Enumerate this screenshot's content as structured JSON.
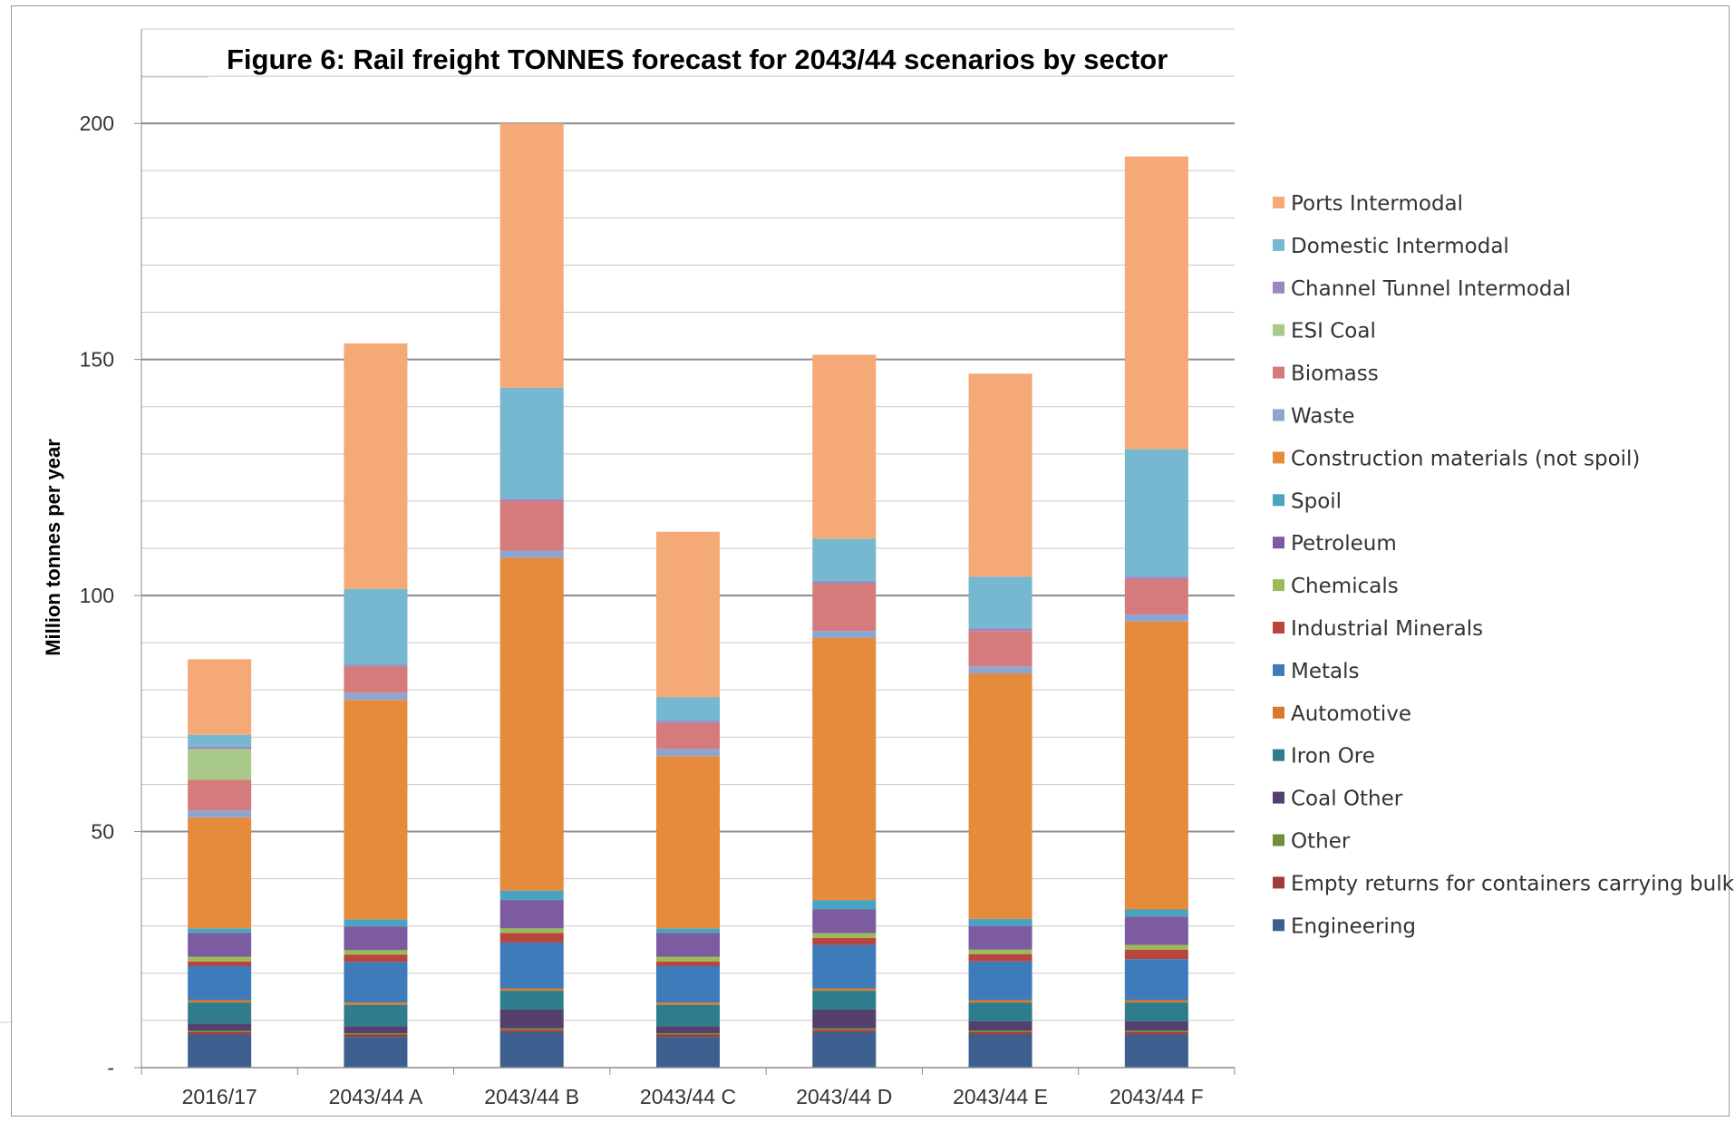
{
  "chart_data": {
    "type": "bar",
    "stacked": true,
    "title": "Figure 6:  Rail freight TONNES forecast for 2043/44 scenarios by sector",
    "ylabel": "Million tonnes per year",
    "xlabel": "",
    "ylim": [
      0,
      220
    ],
    "yticks": [
      {
        "value": 0,
        "label": "-"
      },
      {
        "value": 50,
        "label": "50"
      },
      {
        "value": 100,
        "label": "100"
      },
      {
        "value": 150,
        "label": "150"
      },
      {
        "value": 200,
        "label": "200"
      }
    ],
    "grid": true,
    "legend_position": "right",
    "categories": [
      "2016/17",
      "2043/44 A",
      "2043/44 B",
      "2043/44 C",
      "2043/44 D",
      "2043/44 E",
      "2043/44 F"
    ],
    "series": [
      {
        "name": "Engineering",
        "color": "#3d5f8f",
        "values": [
          7,
          6.5,
          7.5,
          6.5,
          7.5,
          7,
          7
        ]
      },
      {
        "name": "Empty returns for containers carrying bulks",
        "color": "#a23b3b",
        "values": [
          0.5,
          0.5,
          0.5,
          0.5,
          0.5,
          0.5,
          0.5
        ]
      },
      {
        "name": "Other",
        "color": "#6f8f3a",
        "values": [
          0.3,
          0.3,
          0.3,
          0.3,
          0.3,
          0.3,
          0.3
        ]
      },
      {
        "name": "Coal Other",
        "color": "#55406d",
        "values": [
          1.5,
          1.5,
          4,
          1.5,
          4,
          2,
          2
        ]
      },
      {
        "name": "Iron Ore",
        "color": "#2f7c8c",
        "values": [
          4.5,
          4.5,
          4,
          4.5,
          4,
          4,
          4
        ]
      },
      {
        "name": "Automotive",
        "color": "#d9792e",
        "values": [
          0.5,
          0.5,
          0.5,
          0.5,
          0.5,
          0.5,
          0.5
        ]
      },
      {
        "name": "Metals",
        "color": "#3d7bbb",
        "values": [
          7.2,
          8.6,
          9.7,
          7.7,
          9.2,
          8.2,
          8.7
        ]
      },
      {
        "name": "Industrial Minerals",
        "color": "#b8453e",
        "values": [
          1,
          1.5,
          2,
          1,
          1.5,
          1.5,
          2
        ]
      },
      {
        "name": "Chemicals",
        "color": "#9bbb59",
        "values": [
          1,
          1,
          1,
          1,
          1,
          1,
          1
        ]
      },
      {
        "name": "Petroleum",
        "color": "#7c5ba0",
        "values": [
          5,
          5,
          6,
          5,
          5,
          5,
          6
        ]
      },
      {
        "name": "Spoil",
        "color": "#4aa3bf",
        "values": [
          1,
          1.5,
          2,
          1,
          2,
          1.5,
          1.5
        ]
      },
      {
        "name": "Construction materials (not spoil)",
        "color": "#e68a3c",
        "values": [
          23.5,
          46.5,
          70.5,
          36.5,
          55.5,
          52,
          61
        ]
      },
      {
        "name": "Waste",
        "color": "#8ea6cf",
        "values": [
          1.5,
          1.5,
          1.5,
          1.5,
          1.5,
          1.5,
          1.5
        ]
      },
      {
        "name": "Biomass",
        "color": "#d67b7b",
        "values": [
          6.5,
          5.5,
          10.5,
          5.5,
          10,
          7.5,
          7.5
        ]
      },
      {
        "name": "ESI Coal",
        "color": "#a9c98a",
        "values": [
          6.5,
          0,
          0,
          0,
          0,
          0,
          0
        ]
      },
      {
        "name": "Channel Tunnel Intermodal",
        "color": "#9d86bd",
        "values": [
          0.5,
          0.5,
          0.5,
          0.5,
          0.5,
          0.5,
          0.5
        ]
      },
      {
        "name": "Domestic Intermodal",
        "color": "#76b8cf",
        "values": [
          2.5,
          16,
          23.5,
          5,
          9,
          11,
          27
        ]
      },
      {
        "name": "Ports Intermodal",
        "color": "#f4a976",
        "values": [
          16,
          52,
          56,
          35,
          39,
          43,
          62
        ]
      }
    ]
  }
}
